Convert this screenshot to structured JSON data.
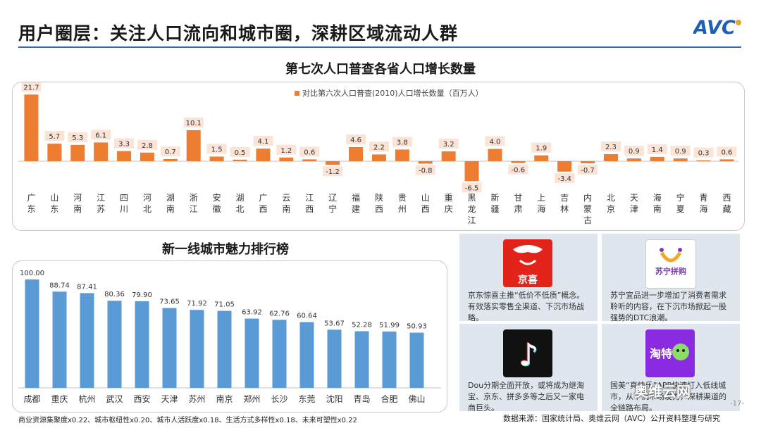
{
  "page": {
    "title": "用户圈层：关注人口流向和城市圈，深耕区域流动人群",
    "logo_text": "AVC",
    "footnote": "商业资源集聚度x0.22、城市枢纽性x0.20、城市人活跃度x0.18、生活方式多样性x0.18、未来可塑性x0.22",
    "source": "数据来源：国家统计局、奥维云网（AVC）公开资料整理与研究",
    "page_number": "-17-",
    "watermark": "奥维云网"
  },
  "colors": {
    "orange": "#ed7d31",
    "blue": "#5b9bd5",
    "accent": "#2e6ab7",
    "label_bg": "#fbe3d6"
  },
  "chart_data": [
    {
      "type": "bar",
      "title": "第七次人口普查各省人口增长数量",
      "legend": "对比第六次人口普查(2010)人口增长数量（百万人）",
      "legend_position": "top-center",
      "categories": [
        "广东",
        "山东",
        "河南",
        "江苏",
        "四川",
        "河北",
        "湖南",
        "浙江",
        "安徽",
        "湖北",
        "广西",
        "云南",
        "江西",
        "辽宁",
        "福建",
        "陕西",
        "贵州",
        "山西",
        "重庆",
        "黑龙江",
        "新疆",
        "甘肃",
        "上海",
        "吉林",
        "内蒙古",
        "北京",
        "天津",
        "海南",
        "宁夏",
        "青海",
        "西藏"
      ],
      "values": [
        21.7,
        5.7,
        5.3,
        6.1,
        3.3,
        2.8,
        0.7,
        10.1,
        1.5,
        0.5,
        4.1,
        1.2,
        0.6,
        -1.2,
        4.6,
        2.2,
        3.8,
        -0.8,
        3.2,
        -6.5,
        4.0,
        -0.6,
        1.9,
        -3.4,
        -0.7,
        2.3,
        0.9,
        1.4,
        0.9,
        0.3,
        0.6
      ],
      "ylim": [
        -7,
        22
      ]
    },
    {
      "type": "bar",
      "title": "新一线城市魅力排行榜",
      "categories": [
        "成都",
        "重庆",
        "杭州",
        "武汉",
        "西安",
        "天津",
        "苏州",
        "南京",
        "郑州",
        "长沙",
        "东莞",
        "沈阳",
        "青岛",
        "合肥",
        "佛山"
      ],
      "values": [
        100.0,
        88.74,
        87.41,
        80.36,
        79.9,
        73.65,
        71.92,
        71.05,
        63.92,
        62.76,
        60.64,
        53.67,
        52.28,
        51.99,
        50.93
      ],
      "ylim": [
        0,
        100
      ]
    }
  ],
  "cards": [
    {
      "name": "jingxi",
      "icon_text": "京喜",
      "text": "京东惊喜主推“低价不低质”概念。有效落实零售全渠道、下沉市场战略。"
    },
    {
      "name": "suning",
      "icon_text": "苏宁拼购",
      "text": "苏宁宜品进一步增加了消费者需求聆听的内容，在下沉市场掀起一股强势的DTC浪潮。"
    },
    {
      "name": "douyin",
      "icon_text": "♪",
      "text": "Dou分期全面开放，或将成为继淘宝、京东、拼多多等之后又一家电商巨头。"
    },
    {
      "name": "taotaole",
      "icon_text": "淘特",
      "text": "国美“真快乐”APP快速打入低线城市，从下沉市场发力，深耕渠道的全链路布局。"
    }
  ]
}
